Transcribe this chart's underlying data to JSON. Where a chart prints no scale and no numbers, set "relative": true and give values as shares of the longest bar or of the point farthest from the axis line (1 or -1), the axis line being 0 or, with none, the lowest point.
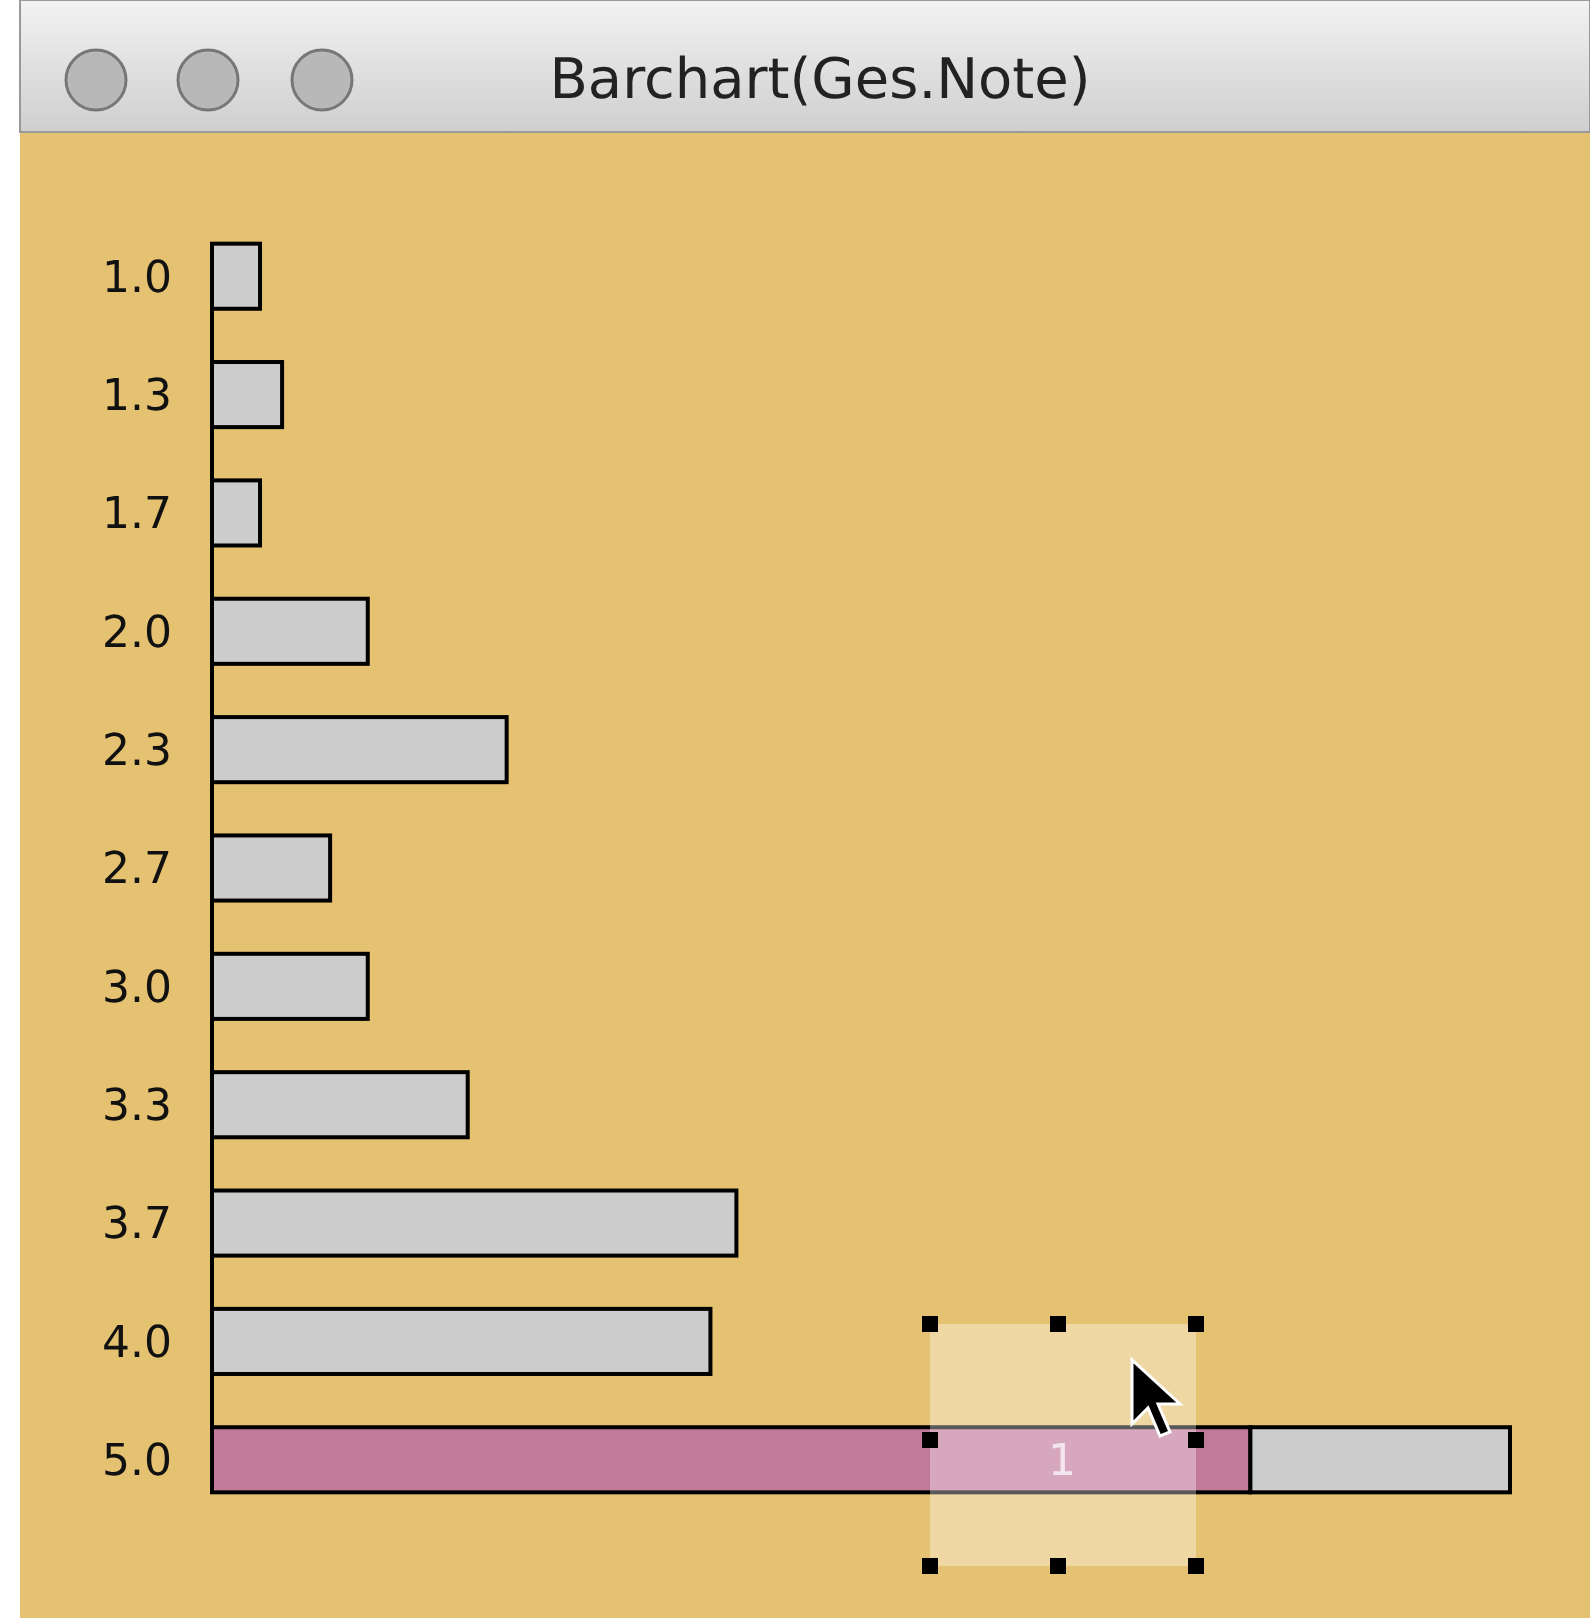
{
  "chart_data": {
    "type": "bar",
    "title": "Barchart(Ges.Note)",
    "orientation": "horizontal",
    "stacked": true,
    "relative": true,
    "categories": [
      "1.0",
      "1.3",
      "1.7",
      "2.0",
      "2.3",
      "2.7",
      "3.0",
      "3.3",
      "3.7",
      "4.0",
      "5.0"
    ],
    "series": [
      {
        "color": "#c27a9a",
        "values": [
          0,
          0,
          0,
          0,
          0,
          0,
          0,
          0,
          0,
          0,
          0.8
        ]
      },
      {
        "color": "#cccccc",
        "values": [
          0.037,
          0.054,
          0.037,
          0.12,
          0.227,
          0.091,
          0.12,
          0.197,
          0.404,
          0.384,
          0.2
        ]
      }
    ],
    "annotations": [
      "1"
    ]
  }
}
